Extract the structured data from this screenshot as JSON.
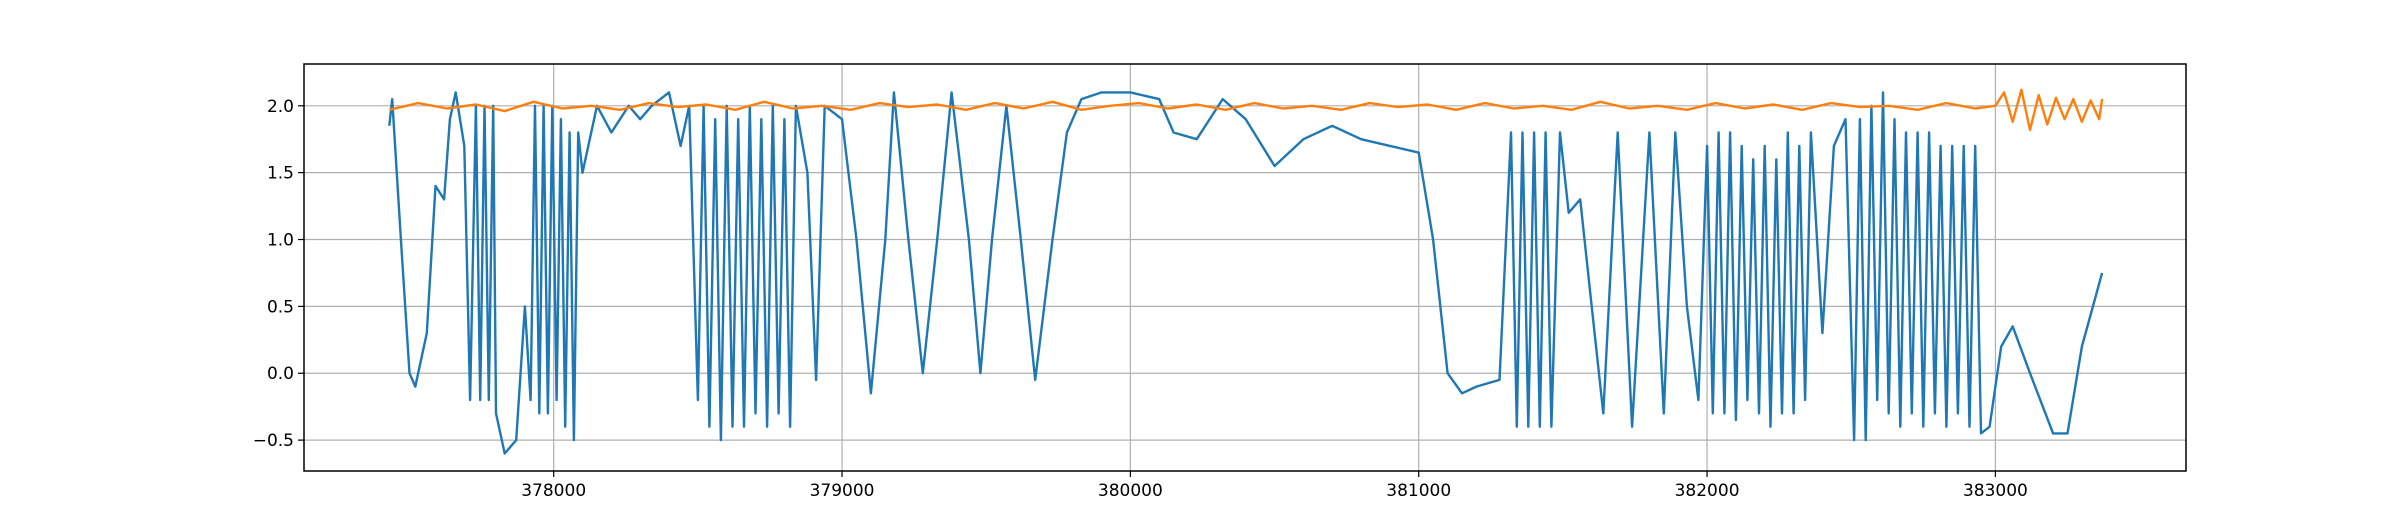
{
  "chart_data": {
    "type": "line",
    "xlim": [
      377134,
      383661
    ],
    "ylim": [
      -0.731,
      2.3125
    ],
    "xticks": [
      378000,
      379000,
      380000,
      381000,
      382000,
      383000
    ],
    "yticks": [
      {
        "value": -0.5,
        "label": "−0.5"
      },
      {
        "value": 0,
        "label": "0.0"
      },
      0.5,
      {
        "value": 1,
        "label": "1.0"
      },
      1.5,
      {
        "value": 2,
        "label": "2.0"
      }
    ],
    "grid": true,
    "series": [
      {
        "color": "#1f77b4",
        "x": [
          377430,
          377440,
          377470,
          377500,
          377520,
          377560,
          377590,
          377620,
          377640,
          377660,
          377690,
          377710,
          377730,
          377745,
          377760,
          377775,
          377790,
          377800,
          377830,
          377870,
          377900,
          377920,
          377935,
          377950,
          377965,
          377980,
          377995,
          378010,
          378025,
          378040,
          378055,
          378070,
          378085,
          378100,
          378150,
          378200,
          378260,
          378300,
          378340,
          378400,
          378440,
          378470,
          378500,
          378520,
          378540,
          378560,
          378580,
          378600,
          378620,
          378640,
          378660,
          378680,
          378700,
          378720,
          378740,
          378760,
          378780,
          378800,
          378820,
          378840,
          378880,
          378910,
          378940,
          379000,
          379050,
          379100,
          379150,
          379180,
          379230,
          379280,
          379330,
          379380,
          379440,
          379480,
          379520,
          379570,
          379620,
          379670,
          379730,
          379780,
          379830,
          379900,
          380000,
          380100,
          380150,
          380230,
          380320,
          380400,
          380500,
          380600,
          380700,
          380800,
          380900,
          381000,
          381050,
          381100,
          381150,
          381200,
          381280,
          381320,
          381340,
          381360,
          381380,
          381400,
          381420,
          381440,
          381460,
          381490,
          381520,
          381560,
          381600,
          381640,
          381690,
          381740,
          381800,
          381850,
          381890,
          381930,
          381970,
          382000,
          382020,
          382040,
          382060,
          382080,
          382100,
          382120,
          382140,
          382160,
          382180,
          382200,
          382220,
          382240,
          382260,
          382280,
          382300,
          382320,
          382340,
          382360,
          382400,
          382440,
          382480,
          382510,
          382530,
          382550,
          382570,
          382590,
          382610,
          382630,
          382650,
          382670,
          382690,
          382710,
          382730,
          382750,
          382770,
          382790,
          382810,
          382830,
          382850,
          382870,
          382890,
          382910,
          382930,
          382950,
          382980,
          383020,
          383060,
          383120,
          383200,
          383250,
          383300,
          383370
        ],
        "values": [
          1.85,
          2.05,
          1.0,
          0.0,
          -0.1,
          0.3,
          1.4,
          1.3,
          1.9,
          2.1,
          1.7,
          -0.2,
          2.0,
          -0.2,
          2.0,
          -0.2,
          2.0,
          -0.3,
          -0.6,
          -0.5,
          0.5,
          -0.2,
          2.0,
          -0.3,
          2.0,
          -0.3,
          2.0,
          -0.2,
          1.9,
          -0.4,
          1.8,
          -0.5,
          1.8,
          1.5,
          2.0,
          1.8,
          2.0,
          1.9,
          2.0,
          2.1,
          1.7,
          2.0,
          -0.2,
          2.0,
          -0.4,
          1.9,
          -0.5,
          2.0,
          -0.4,
          1.9,
          -0.4,
          2.0,
          -0.3,
          1.9,
          -0.4,
          2.0,
          -0.3,
          1.9,
          -0.4,
          2.0,
          1.5,
          -0.05,
          2.0,
          1.9,
          1.0,
          -0.15,
          1.0,
          2.1,
          1.0,
          0.0,
          1.0,
          2.1,
          1.0,
          0.0,
          1.0,
          2.0,
          1.0,
          -0.05,
          1.0,
          1.8,
          2.05,
          2.1,
          2.1,
          2.05,
          1.8,
          1.75,
          2.05,
          1.9,
          1.55,
          1.75,
          1.85,
          1.75,
          1.7,
          1.65,
          1.0,
          0.0,
          -0.15,
          -0.1,
          -0.05,
          1.8,
          -0.4,
          1.8,
          -0.4,
          1.8,
          -0.4,
          1.8,
          -0.4,
          1.8,
          1.2,
          1.3,
          0.5,
          -0.3,
          1.8,
          -0.4,
          1.8,
          -0.3,
          1.8,
          0.5,
          -0.2,
          1.7,
          -0.3,
          1.8,
          -0.3,
          1.8,
          -0.35,
          1.7,
          -0.2,
          1.6,
          -0.3,
          1.7,
          -0.4,
          1.6,
          -0.3,
          1.8,
          -0.3,
          1.7,
          -0.2,
          1.8,
          0.3,
          1.7,
          1.9,
          -0.5,
          1.9,
          -0.5,
          2.0,
          -0.2,
          2.1,
          -0.3,
          1.9,
          -0.4,
          1.8,
          -0.3,
          1.8,
          -0.4,
          1.8,
          -0.3,
          1.7,
          -0.4,
          1.7,
          -0.3,
          1.7,
          -0.4,
          1.7,
          -0.45,
          -0.4,
          0.2,
          0.35,
          0.0,
          -0.45,
          -0.45,
          0.2,
          0.75
        ]
      },
      {
        "color": "#ff7f0e",
        "x": [
          377430,
          377530,
          377630,
          377730,
          377830,
          377930,
          378030,
          378130,
          378230,
          378330,
          378430,
          378530,
          378630,
          378730,
          378830,
          378930,
          379030,
          379130,
          379230,
          379330,
          379430,
          379530,
          379630,
          379730,
          379830,
          379930,
          380030,
          380130,
          380230,
          380330,
          380430,
          380530,
          380630,
          380730,
          380830,
          380930,
          381030,
          381130,
          381230,
          381330,
          381430,
          381530,
          381630,
          381730,
          381830,
          381930,
          382030,
          382130,
          382230,
          382330,
          382430,
          382530,
          382630,
          382730,
          382830,
          382930,
          383000,
          383030,
          383060,
          383090,
          383120,
          383150,
          383180,
          383210,
          383240,
          383270,
          383300,
          383330,
          383360,
          383370
        ],
        "values": [
          1.97,
          2.02,
          1.98,
          2.01,
          1.96,
          2.03,
          1.98,
          2.0,
          1.97,
          2.02,
          1.99,
          2.01,
          1.97,
          2.03,
          1.98,
          2.0,
          1.97,
          2.02,
          1.99,
          2.01,
          1.97,
          2.02,
          1.98,
          2.03,
          1.97,
          2.0,
          2.02,
          1.98,
          2.01,
          1.97,
          2.02,
          1.98,
          2.0,
          1.97,
          2.02,
          1.99,
          2.01,
          1.97,
          2.02,
          1.98,
          2.0,
          1.97,
          2.03,
          1.98,
          2.0,
          1.97,
          2.02,
          1.98,
          2.01,
          1.97,
          2.02,
          1.99,
          2.0,
          1.97,
          2.02,
          1.98,
          2.0,
          2.1,
          1.88,
          2.12,
          1.82,
          2.08,
          1.86,
          2.06,
          1.9,
          2.05,
          1.88,
          2.04,
          1.9,
          2.05
        ]
      }
    ]
  }
}
